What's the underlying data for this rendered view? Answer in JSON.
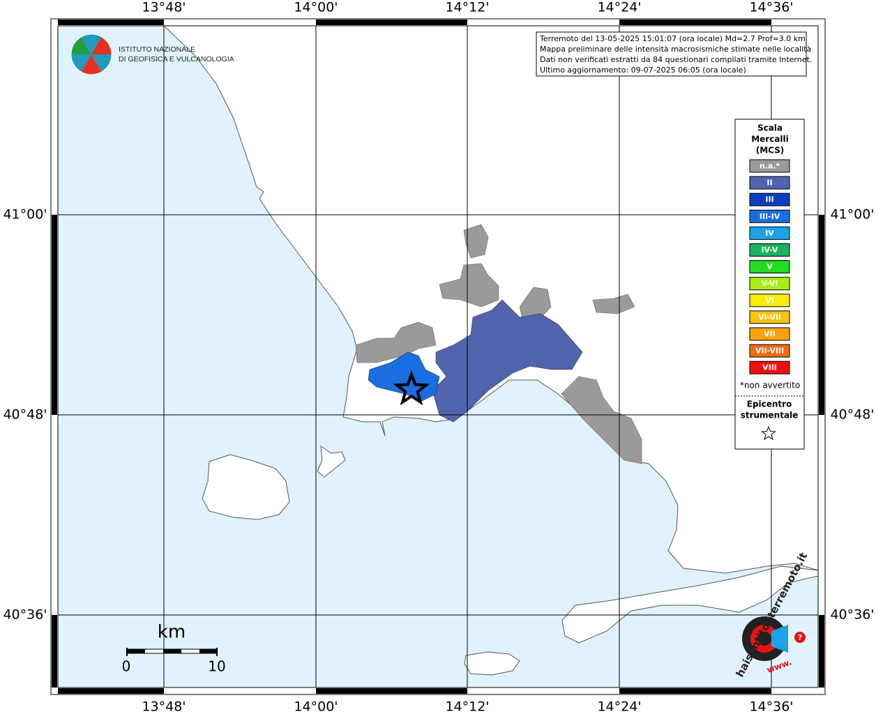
{
  "map": {
    "lon_labels": [
      "13°48'",
      "14°00'",
      "14°12'",
      "14°24'",
      "14°36'"
    ],
    "lat_labels": [
      "41°00'",
      "40°48'",
      "40°36'"
    ],
    "info": [
      "Terremoto del 13-05-2025 15:01:07 (ora locale) Md=2.7 Prof=3.0 km",
      "Mappa preliminare delle intensità macrosismiche stimate nelle località",
      "Dati non verificati estratti da 84 questionari compilati tramite Internet.",
      "Ultimo aggiornamento: 09-07-2025 06:05 (ora locale)"
    ],
    "logo": [
      "ISTITUTO NAZIONALE",
      "DI GEOFISICA E VULCANOLOGIA"
    ],
    "legend": {
      "title": [
        "Scala",
        "Mercalli",
        "(MCS)"
      ],
      "items": [
        {
          "label": "n.a.*",
          "color": "#9a9a9a"
        },
        {
          "label": "II",
          "color": "#5065ad"
        },
        {
          "label": "III",
          "color": "#0b3fbf"
        },
        {
          "label": "III-IV",
          "color": "#1a6ee0"
        },
        {
          "label": "IV",
          "color": "#1ba2e6"
        },
        {
          "label": "IV-V",
          "color": "#18b35c"
        },
        {
          "label": "V",
          "color": "#22dd22"
        },
        {
          "label": "V-VI",
          "color": "#a8ee10"
        },
        {
          "label": "VI",
          "color": "#f8f000"
        },
        {
          "label": "VI-VII",
          "color": "#f8c210"
        },
        {
          "label": "VII",
          "color": "#f8a212"
        },
        {
          "label": "VII-VIII",
          "color": "#f06c10"
        },
        {
          "label": "VIII",
          "color": "#ee1010"
        }
      ],
      "note": "*non avvertito",
      "epicenter": [
        "Epicentro",
        "strumentale"
      ]
    },
    "scale": {
      "unit": "km",
      "ticks": [
        0,
        10
      ]
    },
    "site_logo": {
      "name": "haisentitoilterremoto.it",
      "prefix": "www.",
      "mark": "?"
    }
  }
}
